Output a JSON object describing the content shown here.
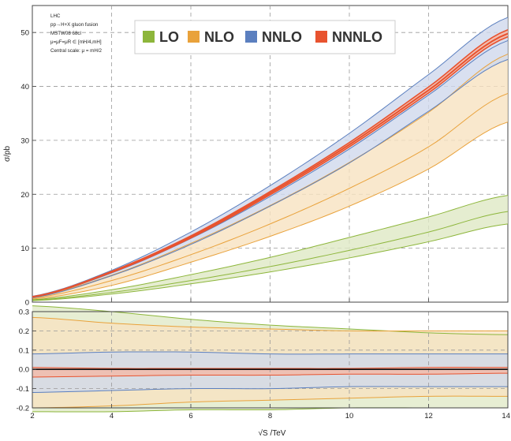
{
  "chart_data": [
    {
      "panel": "main",
      "type": "area",
      "xlim": [
        2,
        14
      ],
      "ylim": [
        0,
        55
      ],
      "grid": true,
      "xticks": [
        "2",
        "4",
        "6",
        "8",
        "10",
        "12",
        "14"
      ],
      "yticks": [
        "0",
        "10",
        "20",
        "30",
        "40",
        "50"
      ],
      "ylabel": "σ/pb",
      "info_lines": [
        "LHC",
        "pp→H+X gluon fusion",
        "MSTW08 68cl",
        "μ=μF=μR ∈ [mH/4,mH]",
        "Central scale: μ = mH/2"
      ],
      "legend": {
        "position": "top",
        "items": [
          "LO",
          "NLO",
          "NNLO",
          "NNNLO"
        ]
      },
      "x": [
        2,
        4,
        6,
        8,
        10,
        12,
        14
      ],
      "series": [
        {
          "name": "LO",
          "color": "#8db63b",
          "fill": "#dfe8c4",
          "central": [
            0.35,
            1.8,
            4.0,
            6.6,
            9.6,
            13.0,
            16.8
          ],
          "upper": [
            0.45,
            2.3,
            5.1,
            8.3,
            12.0,
            15.8,
            19.8
          ],
          "lower": [
            0.27,
            1.5,
            3.4,
            5.6,
            8.2,
            11.2,
            14.5
          ]
        },
        {
          "name": "NLO",
          "color": "#e9a23b",
          "fill": "#f8e2c0",
          "central": [
            0.75,
            4.0,
            8.8,
            14.5,
            21.1,
            28.8,
            38.7
          ],
          "upper": [
            0.95,
            5.0,
            10.9,
            17.9,
            25.9,
            35.2,
            46.0
          ],
          "lower": [
            0.58,
            3.1,
            7.4,
            12.2,
            17.8,
            24.7,
            33.4
          ]
        },
        {
          "name": "NNLO",
          "color": "#5b7fbf",
          "fill": "#cfd8ec",
          "central": [
            0.95,
            5.4,
            11.8,
            19.6,
            28.4,
            38.4,
            48.5
          ],
          "upper": [
            1.1,
            5.9,
            13.0,
            21.6,
            31.3,
            42.2,
            52.8
          ],
          "lower": [
            0.82,
            4.9,
            10.7,
            17.8,
            25.8,
            35.4,
            45.0
          ]
        },
        {
          "name": "NNNLO",
          "color": "#e8532f",
          "fill": "#f6b7a3",
          "central": [
            0.98,
            5.6,
            12.1,
            20.2,
            29.2,
            39.3,
            49.8
          ],
          "upper": [
            1.0,
            5.7,
            12.3,
            20.5,
            29.6,
            39.9,
            50.5
          ],
          "lower": [
            0.95,
            5.5,
            11.9,
            19.9,
            28.8,
            38.8,
            49.2
          ]
        }
      ]
    },
    {
      "panel": "ratio",
      "type": "area",
      "xlim": [
        2,
        14
      ],
      "ylim": [
        -0.2,
        0.3
      ],
      "grid": true,
      "xlabel": "√S /TeV",
      "xticks": [
        "2",
        "4",
        "6",
        "8",
        "10",
        "12",
        "14"
      ],
      "yticks": [
        "-0.2",
        "-0.1",
        "0.0",
        "0.1",
        "0.2",
        "0.3"
      ],
      "x": [
        2,
        4,
        6,
        8,
        10,
        12,
        14
      ],
      "series": [
        {
          "name": "LO",
          "color": "#8db63b",
          "fill": "#dfe8c4",
          "upper": [
            0.33,
            0.3,
            0.26,
            0.23,
            0.21,
            0.19,
            0.18
          ],
          "lower": [
            -0.22,
            -0.22,
            -0.21,
            -0.21,
            -0.2,
            -0.2,
            -0.2
          ]
        },
        {
          "name": "NLO",
          "color": "#e9a23b",
          "fill": "#f8e2c0",
          "upper": [
            0.27,
            0.24,
            0.22,
            0.21,
            0.2,
            0.2,
            0.2
          ],
          "lower": [
            -0.2,
            -0.19,
            -0.17,
            -0.16,
            -0.15,
            -0.14,
            -0.14
          ]
        },
        {
          "name": "NNLO",
          "color": "#5b7fbf",
          "fill": "#cfd8ec",
          "upper": [
            0.08,
            0.09,
            0.09,
            0.08,
            0.08,
            0.08,
            0.08
          ],
          "lower": [
            -0.12,
            -0.11,
            -0.1,
            -0.1,
            -0.09,
            -0.09,
            -0.09
          ]
        },
        {
          "name": "NNNLO",
          "color": "#e8532f",
          "fill": "#f6b7a3",
          "upper": [
            0.01,
            0.005,
            0.005,
            0.005,
            0.005,
            0.01,
            0.01
          ],
          "lower": [
            -0.04,
            -0.035,
            -0.03,
            -0.03,
            -0.025,
            -0.025,
            -0.02
          ]
        }
      ]
    }
  ]
}
